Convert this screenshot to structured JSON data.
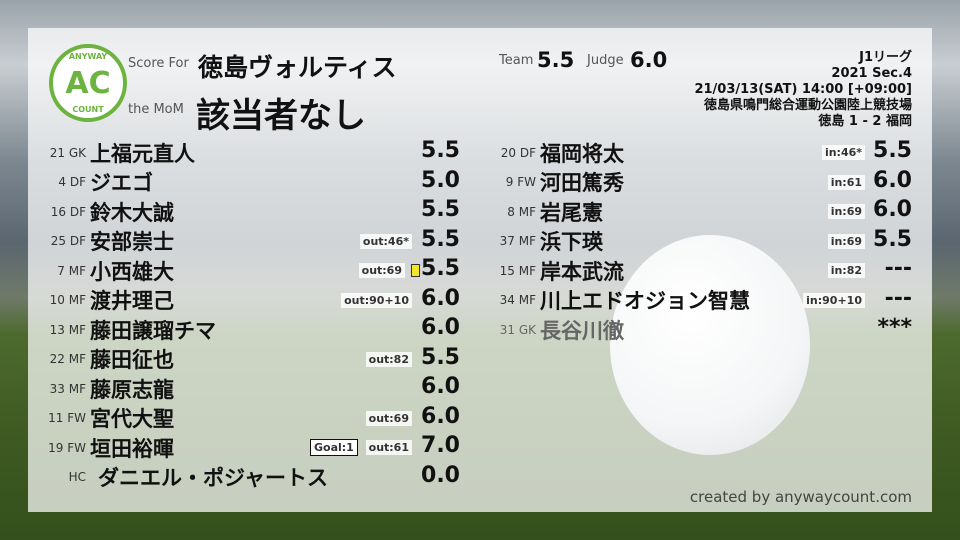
{
  "header": {
    "score_for_label": "Score For",
    "team_name": "徳島ヴォルティス",
    "mom_label": "the MoM",
    "mom_value": "該当者なし",
    "team_label": "Team",
    "team_score": "5.5",
    "judge_label": "Judge",
    "judge_score": "6.0"
  },
  "logo": {
    "top": "ANYWAY",
    "center": "AC",
    "bottom": "COUNT",
    "color": "#6db33f"
  },
  "match": {
    "league": "J1リーグ",
    "season": "2021 Sec.4",
    "datetime": "21/03/13(SAT) 14:00 [+09:00]",
    "venue": "徳島県鳴門総合運動公園陸上競技場",
    "result": "徳島 1 - 2 福岡"
  },
  "left_players": [
    {
      "num": "21",
      "pos": "GK",
      "name": "上福元直人",
      "score": "5.5",
      "sub": "",
      "goal": "",
      "card": ""
    },
    {
      "num": "4",
      "pos": "DF",
      "name": "ジエゴ",
      "score": "5.0",
      "sub": "",
      "goal": "",
      "card": ""
    },
    {
      "num": "16",
      "pos": "DF",
      "name": "鈴木大誠",
      "score": "5.5",
      "sub": "",
      "goal": "",
      "card": ""
    },
    {
      "num": "25",
      "pos": "DF",
      "name": "安部崇士",
      "score": "5.5",
      "sub": "out:46*",
      "goal": "",
      "card": ""
    },
    {
      "num": "7",
      "pos": "MF",
      "name": "小西雄大",
      "score": "5.5",
      "sub": "out:69",
      "goal": "",
      "card": "yellow"
    },
    {
      "num": "10",
      "pos": "MF",
      "name": "渡井理己",
      "score": "6.0",
      "sub": "out:90+10",
      "goal": "",
      "card": ""
    },
    {
      "num": "13",
      "pos": "MF",
      "name": "藤田譲瑠チマ",
      "score": "6.0",
      "sub": "",
      "goal": "",
      "card": ""
    },
    {
      "num": "22",
      "pos": "MF",
      "name": "藤田征也",
      "score": "5.5",
      "sub": "out:82",
      "goal": "",
      "card": ""
    },
    {
      "num": "33",
      "pos": "MF",
      "name": "藤原志龍",
      "score": "6.0",
      "sub": "",
      "goal": "",
      "card": ""
    },
    {
      "num": "11",
      "pos": "FW",
      "name": "宮代大聖",
      "score": "6.0",
      "sub": "out:69",
      "goal": "",
      "card": ""
    },
    {
      "num": "19",
      "pos": "FW",
      "name": "垣田裕暉",
      "score": "7.0",
      "sub": "out:61",
      "goal": "Goal:1",
      "card": ""
    },
    {
      "num": "",
      "pos": "HC",
      "name": "ダニエル・ポジャートス",
      "score": "0.0",
      "sub": "",
      "goal": "",
      "card": ""
    }
  ],
  "right_players": [
    {
      "num": "20",
      "pos": "DF",
      "name": "福岡将太",
      "score": "5.5",
      "sub": "in:46*"
    },
    {
      "num": "9",
      "pos": "FW",
      "name": "河田篤秀",
      "score": "6.0",
      "sub": "in:61"
    },
    {
      "num": "8",
      "pos": "MF",
      "name": "岩尾憲",
      "score": "6.0",
      "sub": "in:69"
    },
    {
      "num": "37",
      "pos": "MF",
      "name": "浜下瑛",
      "score": "5.5",
      "sub": "in:69"
    },
    {
      "num": "15",
      "pos": "MF",
      "name": "岸本武流",
      "score": "---",
      "sub": "in:82"
    },
    {
      "num": "34",
      "pos": "MF",
      "name": "川上エドオジョン智慧",
      "score": "---",
      "sub": "in:90+10"
    },
    {
      "num": "31",
      "pos": "GK",
      "name": "長谷川徹",
      "score": "***",
      "sub": "",
      "dim": true
    }
  ],
  "footer": {
    "credit": "created by anywaycount.com"
  }
}
